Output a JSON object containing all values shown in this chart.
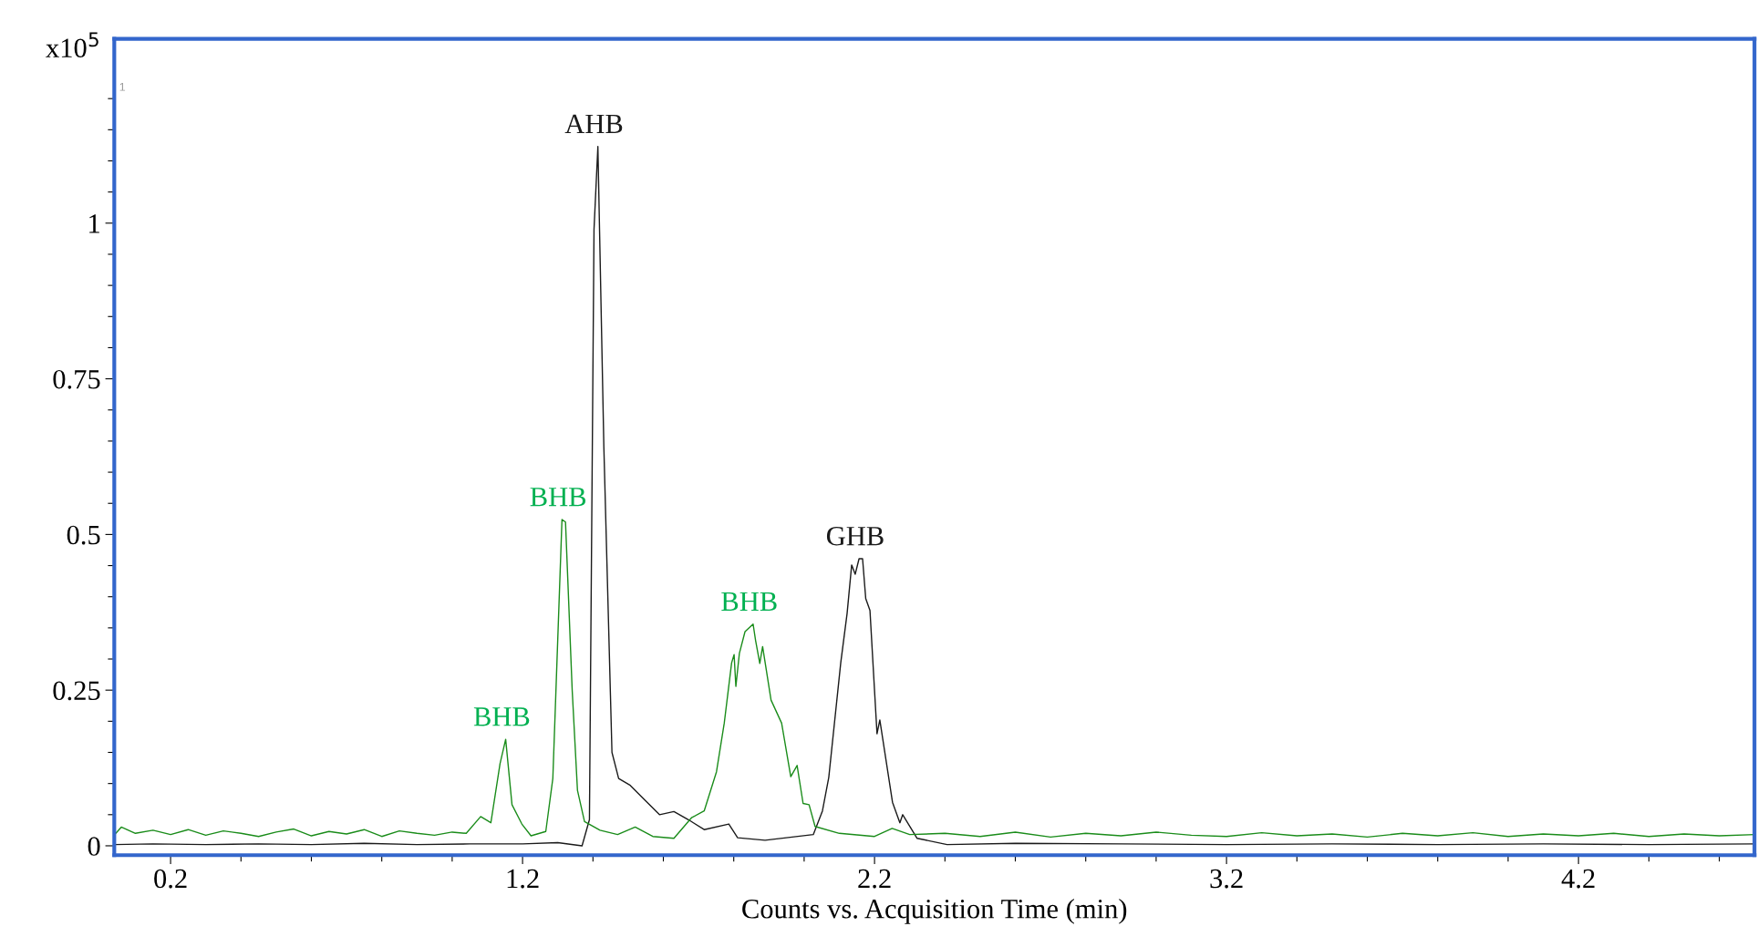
{
  "chart_data": {
    "type": "line",
    "xlabel": "Counts vs. Acquisition Time (min)",
    "ylabel": "x10$^{5}$",
    "xlim": [
      0.04,
      4.7
    ],
    "ylim": [
      -0.015,
      1.296
    ],
    "xticks": [
      0.2,
      {
        "value": 0.4,
        "label": null
      },
      {
        "value": 0.6,
        "label": null
      },
      {
        "value": 0.8,
        "label": null
      },
      {
        "value": 1.0,
        "label": null
      },
      1.2,
      {
        "value": 1.4,
        "label": null
      },
      {
        "value": 1.6,
        "label": null
      },
      {
        "value": 1.8,
        "label": null
      },
      {
        "value": 2.0,
        "label": null
      },
      2.2,
      {
        "value": 2.4,
        "label": null
      },
      {
        "value": 2.6,
        "label": null
      },
      {
        "value": 2.8,
        "label": null
      },
      {
        "value": 3.0,
        "label": null
      },
      3.2,
      {
        "value": 3.4,
        "label": null
      },
      {
        "value": 3.6,
        "label": null
      },
      {
        "value": 3.8,
        "label": null
      },
      {
        "value": 4.0,
        "label": null
      },
      4.2,
      {
        "value": 4.4,
        "label": null
      },
      {
        "value": 4.6,
        "label": null
      }
    ],
    "yticks": [
      0,
      {
        "value": 0.05,
        "label": null
      },
      {
        "value": 0.1,
        "label": null
      },
      {
        "value": 0.15,
        "label": null
      },
      {
        "value": 0.2,
        "label": null
      },
      0.25,
      {
        "value": 0.3,
        "label": null
      },
      {
        "value": 0.35,
        "label": null
      },
      {
        "value": 0.4,
        "label": null
      },
      {
        "value": 0.45,
        "label": null
      },
      0.5,
      {
        "value": 0.55,
        "label": null
      },
      {
        "value": 0.6,
        "label": null
      },
      {
        "value": 0.65,
        "label": null
      },
      {
        "value": 0.7,
        "label": null
      },
      0.75,
      {
        "value": 0.8,
        "label": null
      },
      {
        "value": 0.85,
        "label": null
      },
      {
        "value": 0.9,
        "label": null
      },
      {
        "value": 0.95,
        "label": null
      },
      1,
      {
        "value": 1.05,
        "label": null
      },
      {
        "value": 1.1,
        "label": null
      },
      {
        "value": 1.15,
        "label": null
      },
      {
        "value": 1.2,
        "label": null
      }
    ],
    "grid": false,
    "legend": false,
    "series": [
      {
        "color": "#1a1a1a",
        "x": [
          0.041,
          0.15,
          0.3,
          0.45,
          0.6,
          0.75,
          0.9,
          1.05,
          1.2,
          1.3,
          1.369,
          1.39,
          1.403,
          1.414,
          1.431,
          1.454,
          1.473,
          1.506,
          1.548,
          1.589,
          1.63,
          1.671,
          1.716,
          1.786,
          1.811,
          1.889,
          2.026,
          2.052,
          2.07,
          2.104,
          2.122,
          2.135,
          2.145,
          2.156,
          2.166,
          2.175,
          2.187,
          2.207,
          2.215,
          2.251,
          2.272,
          2.28,
          2.321,
          2.406,
          2.6,
          2.9,
          3.2,
          3.5,
          3.8,
          4.1,
          4.4,
          4.7
        ],
        "values": [
          0.002,
          0.003,
          0.002,
          0.003,
          0.002,
          0.004,
          0.002,
          0.003,
          0.003,
          0.005,
          0.0,
          0.042,
          0.99,
          1.123,
          0.64,
          0.15,
          0.108,
          0.097,
          0.073,
          0.05,
          0.055,
          0.042,
          0.026,
          0.035,
          0.013,
          0.009,
          0.018,
          0.056,
          0.11,
          0.294,
          0.373,
          0.451,
          0.436,
          0.461,
          0.461,
          0.397,
          0.378,
          0.18,
          0.202,
          0.07,
          0.037,
          0.05,
          0.012,
          0.002,
          0.004,
          0.003,
          0.002,
          0.003,
          0.002,
          0.003,
          0.002,
          0.003
        ]
      },
      {
        "color": "#1a8c1a",
        "x": [
          0.041,
          0.06,
          0.1,
          0.15,
          0.2,
          0.25,
          0.3,
          0.35,
          0.4,
          0.45,
          0.5,
          0.55,
          0.6,
          0.65,
          0.7,
          0.75,
          0.8,
          0.85,
          0.9,
          0.95,
          1.0,
          1.04,
          1.081,
          1.11,
          1.136,
          1.152,
          1.17,
          1.198,
          1.224,
          1.266,
          1.286,
          1.312,
          1.322,
          1.341,
          1.356,
          1.376,
          1.42,
          1.47,
          1.52,
          1.57,
          1.63,
          1.68,
          1.716,
          1.751,
          1.773,
          1.794,
          1.801,
          1.806,
          1.816,
          1.832,
          1.855,
          1.862,
          1.874,
          1.882,
          1.906,
          1.936,
          1.962,
          1.98,
          1.997,
          2.014,
          2.031,
          2.1,
          2.2,
          2.25,
          2.3,
          2.4,
          2.5,
          2.6,
          2.7,
          2.8,
          2.9,
          3.0,
          3.1,
          3.2,
          3.3,
          3.4,
          3.5,
          3.6,
          3.7,
          3.8,
          3.9,
          4.0,
          4.1,
          4.2,
          4.3,
          4.4,
          4.5,
          4.6,
          4.7
        ],
        "values": [
          0.018,
          0.03,
          0.02,
          0.025,
          0.018,
          0.026,
          0.017,
          0.024,
          0.02,
          0.015,
          0.022,
          0.027,
          0.016,
          0.023,
          0.019,
          0.026,
          0.015,
          0.024,
          0.02,
          0.017,
          0.022,
          0.02,
          0.047,
          0.037,
          0.132,
          0.171,
          0.066,
          0.035,
          0.016,
          0.023,
          0.108,
          0.524,
          0.52,
          0.25,
          0.089,
          0.039,
          0.025,
          0.018,
          0.03,
          0.015,
          0.012,
          0.045,
          0.056,
          0.119,
          0.197,
          0.294,
          0.307,
          0.256,
          0.309,
          0.344,
          0.356,
          0.33,
          0.293,
          0.32,
          0.234,
          0.197,
          0.111,
          0.129,
          0.068,
          0.066,
          0.031,
          0.02,
          0.015,
          0.028,
          0.018,
          0.02,
          0.015,
          0.022,
          0.014,
          0.02,
          0.016,
          0.022,
          0.017,
          0.015,
          0.021,
          0.016,
          0.019,
          0.014,
          0.02,
          0.016,
          0.021,
          0.015,
          0.019,
          0.016,
          0.02,
          0.015,
          0.019,
          0.016,
          0.018
        ]
      }
    ],
    "annotations": [
      {
        "text": "AHB",
        "x": 1.414,
        "y": 1.123
      },
      {
        "text": "BHB",
        "x": 1.312,
        "y": 0.524
      },
      {
        "text": "BHB",
        "x": 1.152,
        "y": 0.171
      },
      {
        "text": "BHB",
        "x": 1.855,
        "y": 0.356
      },
      {
        "text": "GHB",
        "x": 2.156,
        "y": 0.461
      },
      "1"
    ]
  }
}
